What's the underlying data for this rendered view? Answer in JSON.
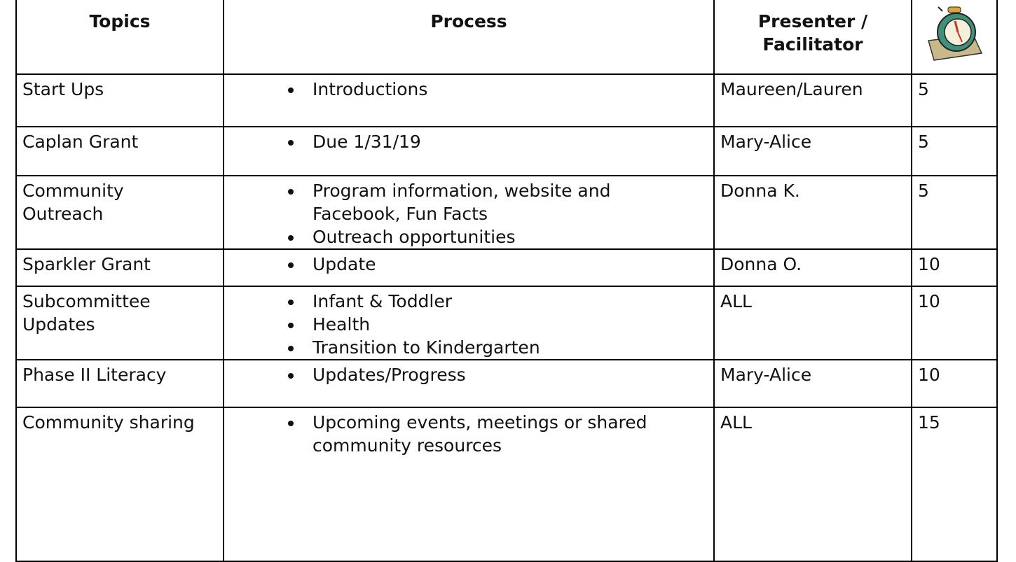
{
  "header": {
    "topics": "Topics",
    "process": "Process",
    "presenter": "Presenter / Facilitator"
  },
  "rows": [
    {
      "topic": "Start Ups",
      "items": [
        "Introductions"
      ],
      "presenter": "Maureen/Lauren",
      "minutes": "5"
    },
    {
      "topic": "Caplan Grant",
      "items": [
        "Due 1/31/19"
      ],
      "presenter": "Mary-Alice",
      "minutes": "5"
    },
    {
      "topic": "Community Outreach",
      "items": [
        "Program information, website and Facebook, Fun Facts",
        "Outreach opportunities"
      ],
      "presenter": "Donna K.",
      "minutes": "5"
    },
    {
      "topic": "Sparkler Grant",
      "items": [
        "Update"
      ],
      "presenter": "Donna O.",
      "minutes": "10"
    },
    {
      "topic": "Subcommittee Updates",
      "items": [
        "Infant & Toddler",
        "Health",
        "Transition to Kindergarten"
      ],
      "presenter": "ALL",
      "minutes": "10"
    },
    {
      "topic": "Phase II Literacy",
      "items": [
        "Updates/Progress"
      ],
      "presenter": "Mary-Alice",
      "minutes": "10"
    },
    {
      "topic": "Community sharing",
      "items": [
        "Upcoming events, meetings or shared community resources"
      ],
      "presenter": "ALL",
      "minutes": "15"
    }
  ]
}
